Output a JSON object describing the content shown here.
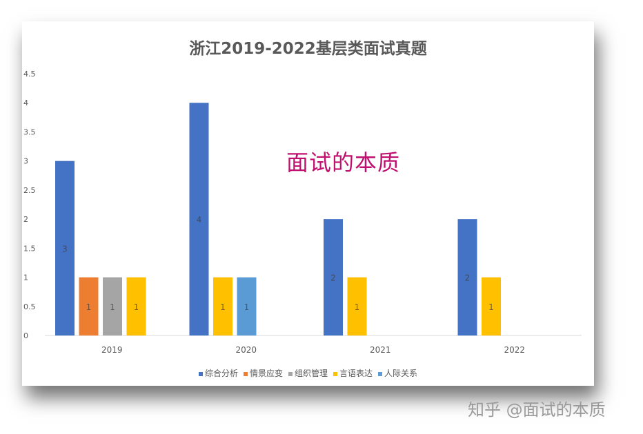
{
  "chart_data": {
    "type": "bar",
    "title": "浙江2019-2022基层类面试真题",
    "categories": [
      "2019",
      "2020",
      "2021",
      "2022"
    ],
    "y_ticks": [
      "0",
      "0.5",
      "1",
      "1.5",
      "2",
      "2.5",
      "3",
      "3.5",
      "4",
      "4.5"
    ],
    "ylim": [
      0,
      4.5
    ],
    "legend_position": "bottom",
    "series": [
      {
        "name": "综合分析",
        "color": "#4472c4",
        "values": [
          3,
          4,
          2,
          2
        ],
        "labels": [
          "3",
          "4",
          "2",
          "2"
        ]
      },
      {
        "name": "情景应变",
        "color": "#ed7d31",
        "values": [
          1,
          null,
          null,
          null
        ],
        "labels": [
          "1",
          null,
          null,
          null
        ]
      },
      {
        "name": "组织管理",
        "color": "#a5a5a5",
        "values": [
          1,
          null,
          null,
          null
        ],
        "labels": [
          "1",
          null,
          null,
          null
        ]
      },
      {
        "name": "言语表达",
        "color": "#ffc000",
        "values": [
          1,
          1,
          1,
          1
        ],
        "labels": [
          "1",
          "1",
          "1",
          "1"
        ]
      },
      {
        "name": "人际关系",
        "color": "#5b9bd5",
        "values": [
          null,
          1,
          null,
          null
        ],
        "labels": [
          null,
          "1",
          null,
          null
        ]
      }
    ]
  },
  "overlay_caption": "面试的本质",
  "watermark": "知乎 @面试的本质"
}
